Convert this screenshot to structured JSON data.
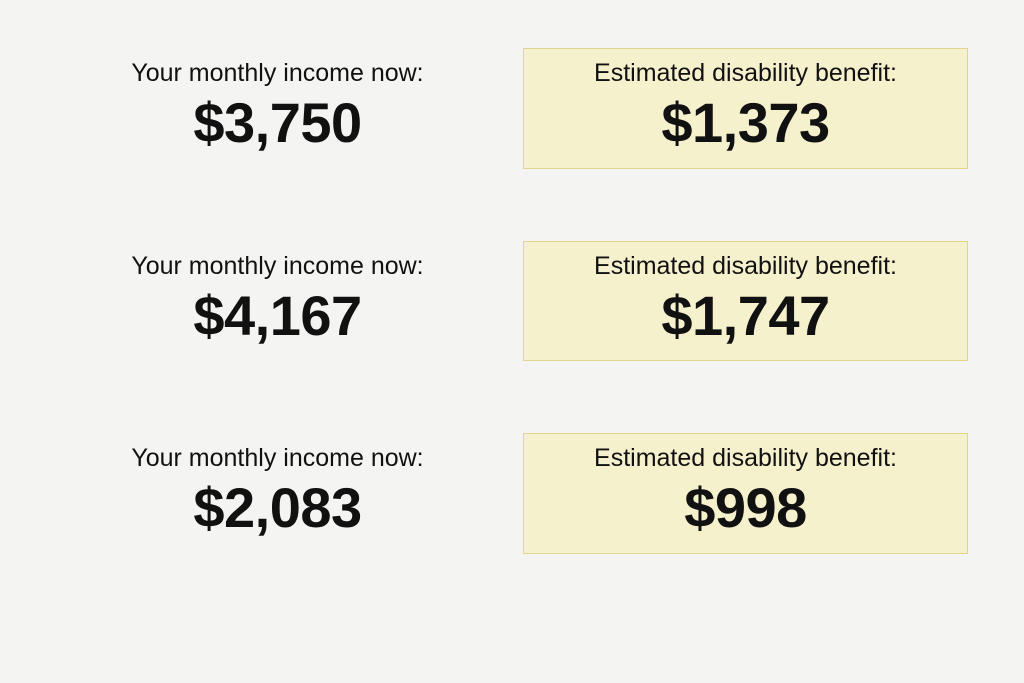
{
  "layout": {
    "background_color": "#f4f4f2",
    "benefit_card_background": "#f6f1cd",
    "benefit_card_border": "#e2d48f",
    "text_color": "#111111",
    "label_font_family": "sans-serif",
    "value_font_family": "sans-serif",
    "label_fontsize": 25,
    "value_fontsize": 56,
    "value_fontweight": 900
  },
  "labels": {
    "income_label": "Your monthly income now:",
    "benefit_label": "Estimated disability benefit:"
  },
  "rows": [
    {
      "income_value": "$3,750",
      "benefit_value": "$1,373"
    },
    {
      "income_value": "$4,167",
      "benefit_value": "$1,747"
    },
    {
      "income_value": "$2,083",
      "benefit_value": "$998"
    }
  ]
}
